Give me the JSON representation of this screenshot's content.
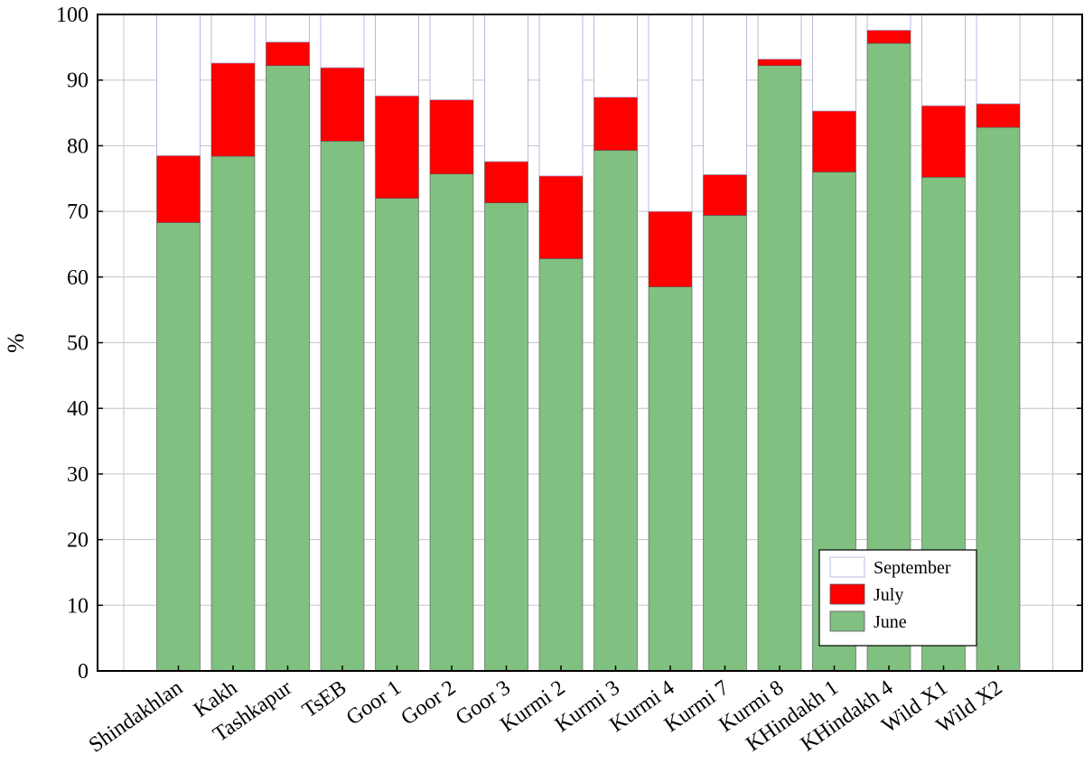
{
  "chart_data": {
    "type": "bar",
    "stacked": true,
    "title": "",
    "xlabel": "",
    "ylabel": "%",
    "ylim": [
      0,
      100
    ],
    "yticks": [
      0,
      10,
      20,
      30,
      40,
      50,
      60,
      70,
      80,
      90,
      100
    ],
    "grid": true,
    "legend_position": "bottom-right",
    "categories": [
      "Shindakhlan",
      "Kakh",
      "Tashkapur",
      "TsEB",
      "Goor 1",
      "Goor 2",
      "Goor 3",
      "Kurmi 2",
      "Kurmi 3",
      "Kurmi 4",
      "Kurmi 7",
      "Kurmi 8",
      "KHindakh 1",
      "KHindakh 4",
      "Wild X1",
      "Wild X2"
    ],
    "series": [
      {
        "name": "June",
        "color": "#80c080",
        "values": [
          68.3,
          78.4,
          92.2,
          80.7,
          72.0,
          75.7,
          71.3,
          62.8,
          79.3,
          58.5,
          69.4,
          92.2,
          76.0,
          95.6,
          75.2,
          82.8
        ]
      },
      {
        "name": "July",
        "color": "#ff0000",
        "values": [
          10.2,
          14.2,
          3.6,
          11.2,
          15.6,
          11.3,
          6.3,
          12.6,
          8.1,
          11.5,
          6.2,
          1.0,
          9.3,
          2.0,
          10.9,
          3.6
        ]
      },
      {
        "name": "September",
        "color": "#ffffff",
        "values": [
          21.5,
          7.4,
          4.2,
          8.1,
          12.4,
          13.0,
          22.4,
          24.6,
          12.6,
          30.0,
          24.4,
          6.8,
          14.7,
          2.4,
          13.9,
          13.6
        ]
      }
    ],
    "legend_order": [
      "September",
      "July",
      "June"
    ]
  }
}
